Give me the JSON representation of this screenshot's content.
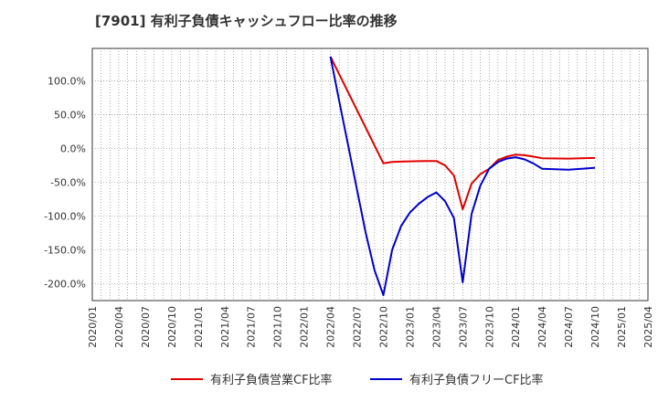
{
  "chart_data": {
    "type": "line",
    "title": "[7901]  有利子負債キャッシュフロー比率の推移",
    "xlabel": "",
    "ylabel": "",
    "x_ticks": [
      "2020/01",
      "2020/04",
      "2020/07",
      "2020/10",
      "2021/01",
      "2021/04",
      "2021/07",
      "2021/10",
      "2022/01",
      "2022/04",
      "2022/07",
      "2022/10",
      "2023/01",
      "2023/04",
      "2023/07",
      "2023/10",
      "2024/01",
      "2024/04",
      "2024/07",
      "2024/10",
      "2025/01",
      "2025/04"
    ],
    "y_ticks": [
      {
        "value": 100,
        "label": "100.0%"
      },
      {
        "value": 50,
        "label": "50.0%"
      },
      {
        "value": 0,
        "label": "0.0%"
      },
      {
        "value": -50,
        "label": "-50.0%"
      },
      {
        "value": -100,
        "label": "-100.0%"
      },
      {
        "value": -150,
        "label": "-150.0%"
      },
      {
        "value": -200,
        "label": "-200.0%"
      }
    ],
    "ylim": [
      -225,
      148
    ],
    "xlim": [
      "2020/01",
      "2025/04"
    ],
    "grid": true,
    "legend_position": "bottom",
    "series": [
      {
        "name": "有利子負債営業CF比率",
        "color": "#e00000",
        "points": [
          [
            "2022/04",
            136
          ],
          [
            "2022/10",
            -22
          ],
          [
            "2022/11",
            -20
          ],
          [
            "2022/12",
            -19.5
          ],
          [
            "2023/01",
            -19
          ],
          [
            "2023/02",
            -18.8
          ],
          [
            "2023/03",
            -18.5
          ],
          [
            "2023/04",
            -18.5
          ],
          [
            "2023/05",
            -25
          ],
          [
            "2023/06",
            -40
          ],
          [
            "2023/07",
            -90
          ],
          [
            "2023/08",
            -52
          ],
          [
            "2023/09",
            -38
          ],
          [
            "2023/10",
            -30
          ],
          [
            "2023/11",
            -17
          ],
          [
            "2023/12",
            -12
          ],
          [
            "2024/01",
            -9
          ],
          [
            "2024/02",
            -10
          ],
          [
            "2024/03",
            -12
          ],
          [
            "2024/04",
            -14.5
          ],
          [
            "2024/07",
            -15
          ],
          [
            "2024/10",
            -14
          ]
        ]
      },
      {
        "name": "有利子負債フリーCF比率",
        "color": "#0000cc",
        "points": [
          [
            "2022/04",
            136
          ],
          [
            "2022/05",
            70
          ],
          [
            "2022/06",
            5
          ],
          [
            "2022/07",
            -60
          ],
          [
            "2022/08",
            -125
          ],
          [
            "2022/09",
            -180
          ],
          [
            "2022/10",
            -217
          ],
          [
            "2022/11",
            -150
          ],
          [
            "2022/12",
            -115
          ],
          [
            "2023/01",
            -95
          ],
          [
            "2023/02",
            -82
          ],
          [
            "2023/03",
            -72
          ],
          [
            "2023/04",
            -65
          ],
          [
            "2023/05",
            -78
          ],
          [
            "2023/06",
            -103
          ],
          [
            "2023/07",
            -198
          ],
          [
            "2023/08",
            -97
          ],
          [
            "2023/09",
            -55
          ],
          [
            "2023/10",
            -30
          ],
          [
            "2023/11",
            -20
          ],
          [
            "2023/12",
            -15
          ],
          [
            "2024/01",
            -13
          ],
          [
            "2024/02",
            -16
          ],
          [
            "2024/03",
            -22
          ],
          [
            "2024/04",
            -30
          ],
          [
            "2024/07",
            -31.5
          ],
          [
            "2024/10",
            -28.5
          ]
        ]
      }
    ]
  }
}
